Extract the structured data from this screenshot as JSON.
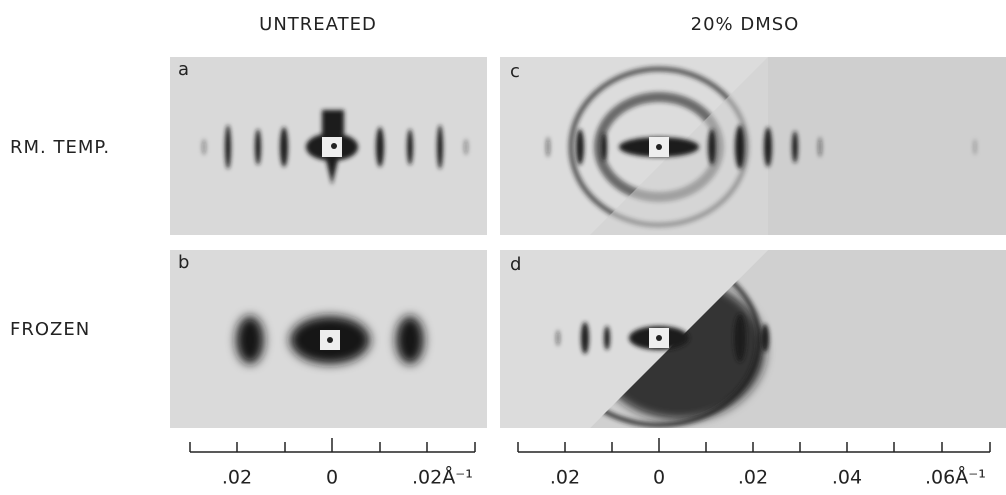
{
  "column_headers": [
    "UNTREATED",
    "20% DMSO"
  ],
  "row_labels": [
    "RM. TEMP.",
    "FROZEN"
  ],
  "panels": [
    {
      "label": "a"
    },
    {
      "label": "b"
    },
    {
      "label": "c"
    },
    {
      "label": "d"
    }
  ],
  "scales": [
    {
      "labels": [
        ".02",
        "0",
        ".02Å⁻¹"
      ]
    },
    {
      "labels": [
        ".02",
        "0",
        ".02",
        ".04",
        ".06Å⁻¹"
      ]
    }
  ]
}
